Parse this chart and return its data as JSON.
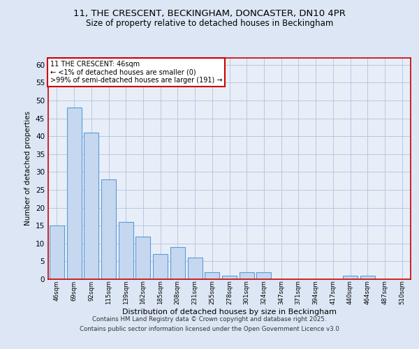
{
  "title_line1": "11, THE CRESCENT, BECKINGHAM, DONCASTER, DN10 4PR",
  "title_line2": "Size of property relative to detached houses in Beckingham",
  "xlabel": "Distribution of detached houses by size in Beckingham",
  "ylabel": "Number of detached properties",
  "categories": [
    "46sqm",
    "69sqm",
    "92sqm",
    "115sqm",
    "139sqm",
    "162sqm",
    "185sqm",
    "208sqm",
    "231sqm",
    "255sqm",
    "278sqm",
    "301sqm",
    "324sqm",
    "347sqm",
    "371sqm",
    "394sqm",
    "417sqm",
    "440sqm",
    "464sqm",
    "487sqm",
    "510sqm"
  ],
  "values": [
    15,
    48,
    41,
    28,
    16,
    12,
    7,
    9,
    6,
    2,
    1,
    2,
    2,
    0,
    0,
    0,
    0,
    1,
    1,
    0,
    0
  ],
  "bar_color": "#c5d8f0",
  "bar_edge_color": "#5b9bd5",
  "annotation_title": "11 THE CRESCENT: 46sqm",
  "annotation_line2": "← <1% of detached houses are smaller (0)",
  "annotation_line3": ">99% of semi-detached houses are larger (191) →",
  "annotation_box_color": "#ffffff",
  "annotation_border_color": "#cc0000",
  "ylim": [
    0,
    62
  ],
  "yticks": [
    0,
    5,
    10,
    15,
    20,
    25,
    30,
    35,
    40,
    45,
    50,
    55,
    60
  ],
  "bg_color": "#dce6f5",
  "plot_bg_color": "#e8eef8",
  "spine_color": "#cc0000",
  "grid_color": "#b8c8e0",
  "footer_line1": "Contains HM Land Registry data © Crown copyright and database right 2025.",
  "footer_line2": "Contains public sector information licensed under the Open Government Licence v3.0"
}
